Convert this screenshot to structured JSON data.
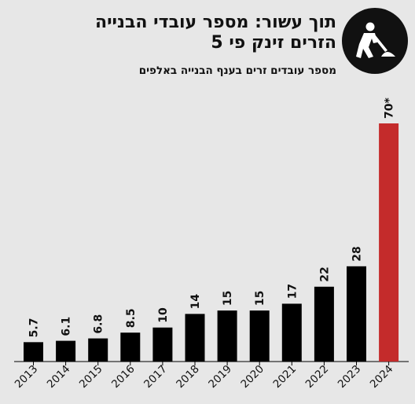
{
  "header": {
    "title_line1": "תוך עשור: מספר עובדי הבנייה",
    "title_line2": "הזרים זינק פי 5",
    "subtitle": "מספר עובדים זרים בענף הבנייה באלפים",
    "logo_icon": "construction-worker-icon"
  },
  "chart_data": {
    "type": "bar",
    "title": "תוך עשור: מספר עובדי הבנייה הזרים זינק פי 5",
    "subtitle": "מספר עובדים זרים בענף הבנייה באלפים",
    "categories": [
      "2013",
      "2014",
      "2015",
      "2016",
      "2017",
      "2018",
      "2019",
      "2020",
      "2021",
      "2022",
      "2023",
      "2024"
    ],
    "values": [
      5.7,
      6.1,
      6.8,
      8.5,
      10,
      14,
      15,
      15,
      17,
      22,
      28,
      70
    ],
    "value_labels": [
      "5.7",
      "6.1",
      "6.8",
      "8.5",
      "10",
      "14",
      "15",
      "15",
      "17",
      "22",
      "28",
      "70*"
    ],
    "bar_colors": [
      "#000000",
      "#000000",
      "#000000",
      "#000000",
      "#000000",
      "#000000",
      "#000000",
      "#000000",
      "#000000",
      "#000000",
      "#000000",
      "#c42b2b"
    ],
    "highlight_color": "#c42b2b",
    "ylim": [
      0,
      70
    ],
    "grid": false,
    "xlabel": "",
    "ylabel": ""
  }
}
